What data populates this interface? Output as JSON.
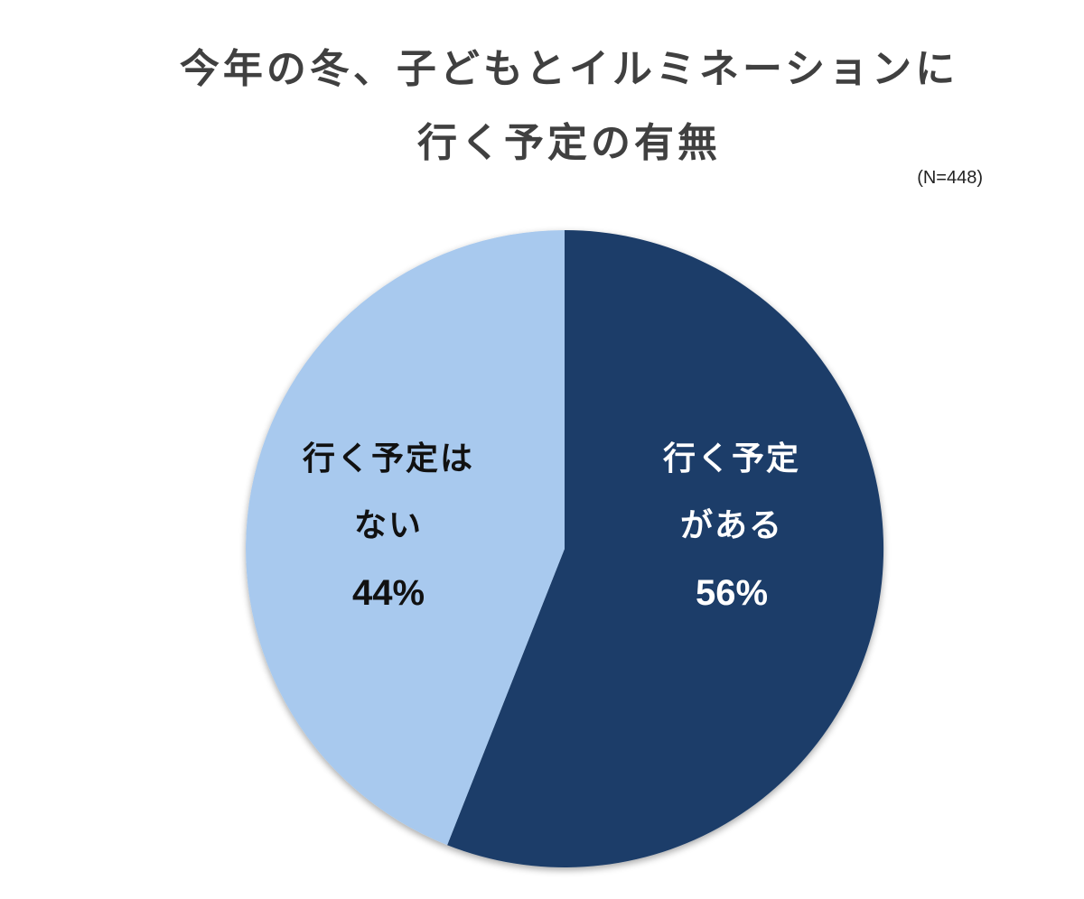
{
  "title": {
    "line1": "今年の冬、子どもとイルミネーションに",
    "line2": "行く予定の有無"
  },
  "sample_note": "(N=448)",
  "colors": {
    "yes": "#1b3d69",
    "no": "#a8c9ee",
    "title": "#404040"
  },
  "slices": [
    {
      "label_line1": "行く予定",
      "label_line2": "がある",
      "percent": "56%"
    },
    {
      "label_line1": "行く予定は",
      "label_line2": "ない",
      "percent": "44%"
    }
  ],
  "chart_data": {
    "type": "pie",
    "title": "今年の冬、子どもとイルミネーションに行く予定の有無",
    "subtitle": "(N=448)",
    "categories": [
      "行く予定がある",
      "行く予定はない"
    ],
    "values": [
      56,
      44
    ],
    "unit": "%",
    "colors": [
      "#1b3d69",
      "#a8c9ee"
    ],
    "start_angle": "12 o'clock, clockwise",
    "legend": "none (labels inside slices)"
  }
}
